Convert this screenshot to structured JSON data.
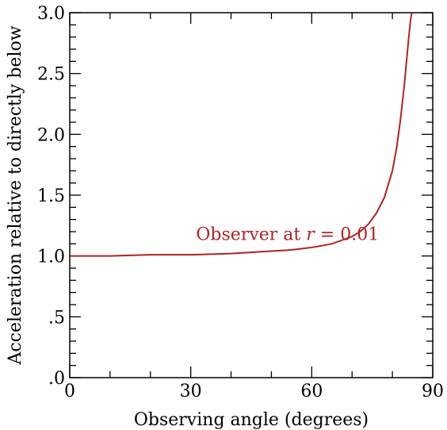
{
  "chart_data": {
    "type": "line",
    "title": "",
    "xlabel": "Observing angle (degrees)",
    "ylabel": "Acceleration relative to directly below",
    "xlim": [
      0,
      90
    ],
    "ylim": [
      0,
      3.0
    ],
    "x_ticks": [
      0,
      30,
      60,
      90
    ],
    "x_tick_labels": [
      "0",
      "30",
      "60",
      "90"
    ],
    "y_ticks": [
      0,
      0.5,
      1.0,
      1.5,
      2.0,
      2.5,
      3.0
    ],
    "y_tick_labels": [
      ".0",
      ".5",
      "1.0",
      "1.5",
      "2.0",
      "2.5",
      "3.0"
    ],
    "grid": false,
    "series": [
      {
        "color": "#b22222",
        "x": [
          0,
          10,
          20,
          30,
          40,
          50,
          55,
          60,
          65,
          70,
          72,
          74,
          76,
          78,
          80,
          81,
          82,
          83,
          84,
          84.5,
          84.8
        ],
        "y": [
          1.0,
          1.0,
          1.01,
          1.01,
          1.02,
          1.04,
          1.05,
          1.07,
          1.1,
          1.16,
          1.2,
          1.26,
          1.35,
          1.48,
          1.7,
          1.88,
          2.12,
          2.42,
          2.78,
          2.94,
          3.0
        ]
      }
    ],
    "annotations": [
      {
        "text_prefix": "Observer at ",
        "text_var": "r",
        "text_suffix": " = 0.01",
        "x": 54,
        "y": 1.13,
        "color": "#b22222"
      }
    ]
  }
}
